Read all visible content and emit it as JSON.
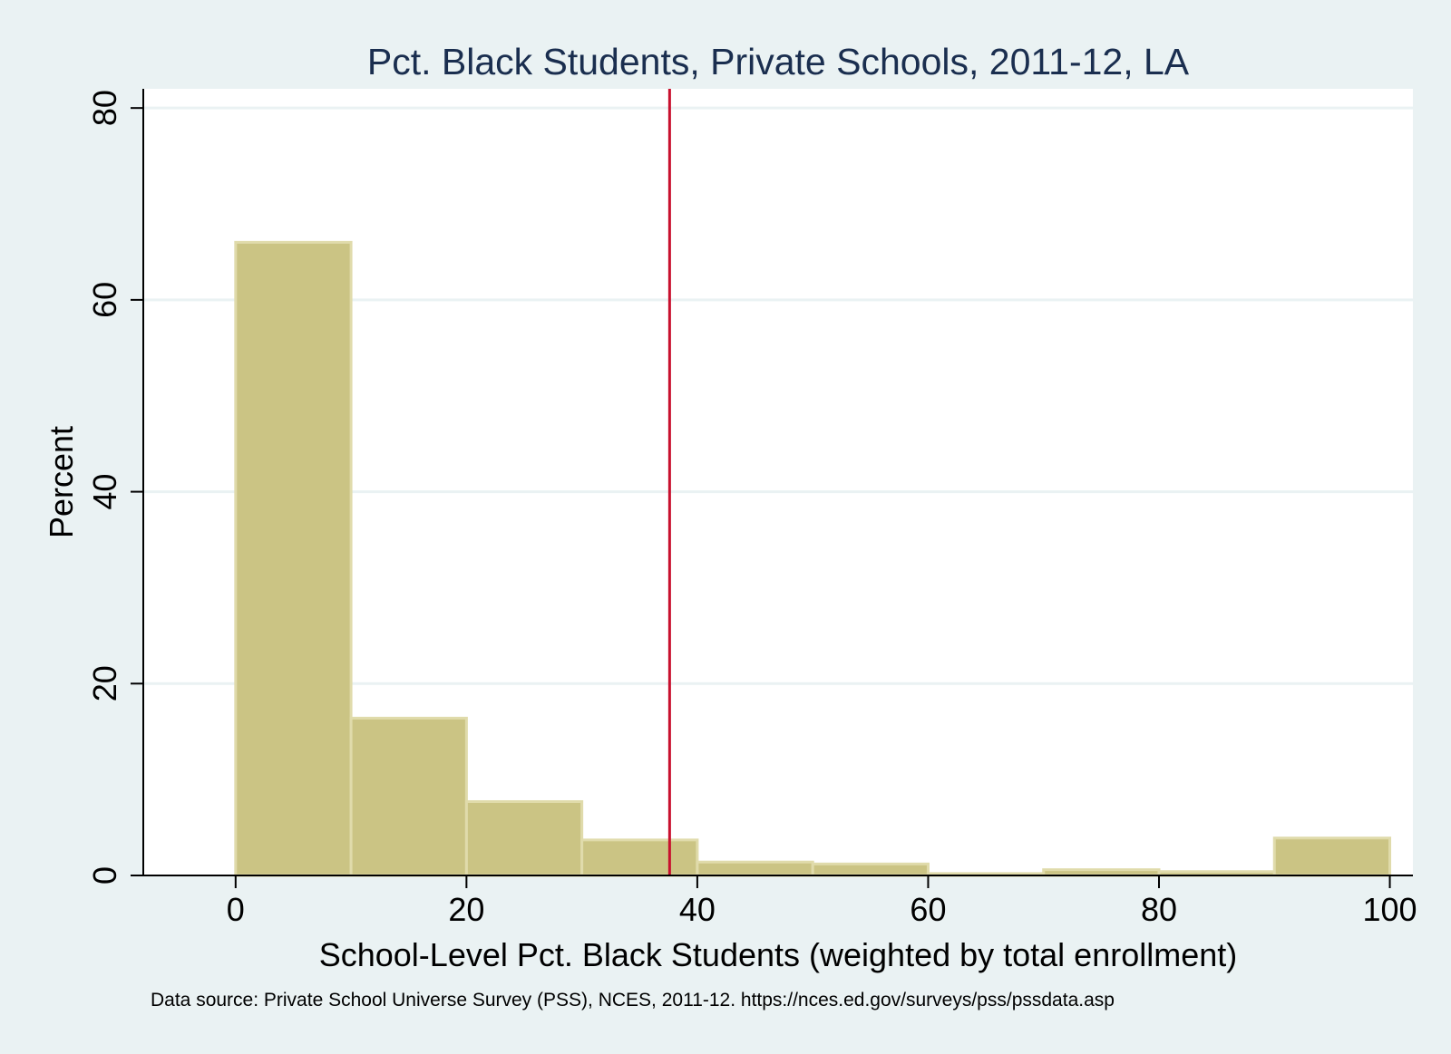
{
  "chart_data": {
    "type": "bar",
    "title": "Pct. Black Students, Private Schools, 2011-12, LA",
    "xlabel": "School-Level Pct. Black Students (weighted by total enrollment)",
    "ylabel": "Percent",
    "source_note": "Data source: Private School Universe Survey (PSS), NCES, 2011-12. https://nces.ed.gov/surveys/pss/pssdata.asp",
    "xlim": [
      -8,
      102
    ],
    "ylim": [
      0,
      82
    ],
    "xticks": [
      0,
      20,
      40,
      60,
      80,
      100
    ],
    "yticks": [
      0,
      20,
      40,
      60,
      80
    ],
    "grid": true,
    "bins": [
      {
        "start": 0,
        "end": 10,
        "value": 66.0
      },
      {
        "start": 10,
        "end": 20,
        "value": 16.4
      },
      {
        "start": 20,
        "end": 30,
        "value": 7.7
      },
      {
        "start": 30,
        "end": 40,
        "value": 3.7
      },
      {
        "start": 40,
        "end": 50,
        "value": 1.4
      },
      {
        "start": 50,
        "end": 60,
        "value": 1.2
      },
      {
        "start": 60,
        "end": 70,
        "value": 0.2
      },
      {
        "start": 70,
        "end": 80,
        "value": 0.6
      },
      {
        "start": 80,
        "end": 90,
        "value": 0.4
      },
      {
        "start": 90,
        "end": 100,
        "value": 3.9
      }
    ],
    "reference_line_x": 37.6,
    "colors": {
      "background": "#eaf2f3",
      "plot_area": "#ffffff",
      "bar_fill": "#cbc484",
      "bar_edge": "#e0dbab",
      "reference_line": "#c8102e",
      "gridline": "#eaf2f3",
      "title": "#1a2e4f",
      "text": "#000000"
    }
  }
}
